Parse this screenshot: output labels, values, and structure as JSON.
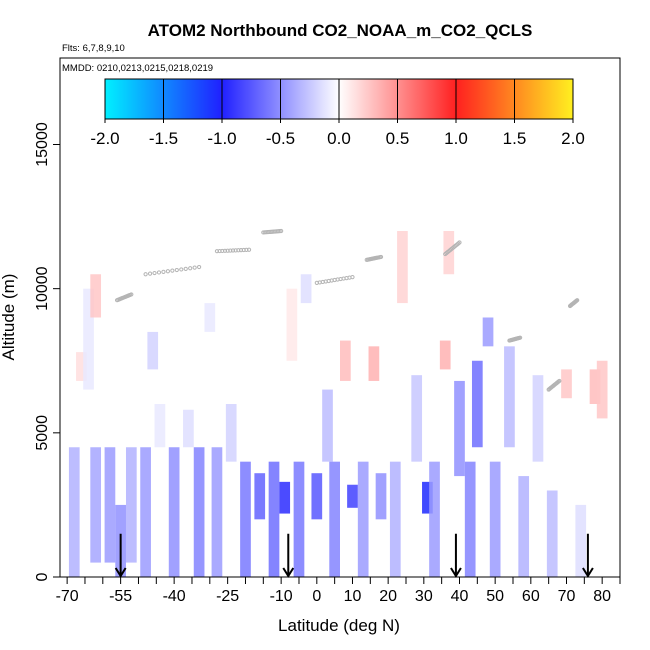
{
  "chart_data": {
    "type": "heatmap",
    "title": "ATOM2 Northbound CO2_NOAA_m_CO2_QCLS",
    "flights_label": "Flts: 6,7,8,9,10",
    "dates_label": "MMDD: 0210,0213,0215,0218,0219",
    "xlabel": "Latitude (deg N)",
    "ylabel": "Altitude (m)",
    "xlim": [
      -72,
      85
    ],
    "ylim": [
      0,
      18000
    ],
    "x_ticks": [
      -70,
      -55,
      -40,
      -25,
      -10,
      0,
      10,
      20,
      30,
      40,
      50,
      60,
      70,
      80
    ],
    "x_minor_ticks": [
      -65,
      -60,
      -50,
      -45,
      -35,
      -30,
      -20,
      -15,
      -5,
      5,
      15,
      25,
      35,
      45,
      55,
      65,
      75,
      85
    ],
    "y_ticks": [
      0,
      5000,
      10000,
      15000
    ],
    "colorbar": {
      "min": -2.0,
      "max": 2.0,
      "ticks": [
        "-2.0",
        "-1.5",
        "-1.0",
        "-0.5",
        "0.0",
        "0.5",
        "1.0",
        "1.5",
        "2.0"
      ],
      "colors": {
        "neg2": "#00f0ff",
        "neg1": "#2020ff",
        "zero": "#ffffff",
        "pos1": "#ff2020",
        "pos2": "#fff020"
      }
    },
    "grid": false,
    "profile_arrows_lat": [
      -55,
      -8,
      39,
      76
    ],
    "cells": [
      {
        "lat": -68,
        "alt": [
          0,
          4500
        ],
        "value": -0.35
      },
      {
        "lat": -66,
        "alt": [
          6800,
          7800
        ],
        "value": 0.15
      },
      {
        "lat": -64,
        "alt": [
          6500,
          10000
        ],
        "value": -0.1
      },
      {
        "lat": -62,
        "alt": [
          9000,
          10500
        ],
        "value": 0.25
      },
      {
        "lat": -62,
        "alt": [
          500,
          4500
        ],
        "value": -0.4
      },
      {
        "lat": -58,
        "alt": [
          500,
          4500
        ],
        "value": -0.45
      },
      {
        "lat": -55,
        "alt": [
          0,
          2500
        ],
        "value": -0.5
      },
      {
        "lat": -52,
        "alt": [
          500,
          4500
        ],
        "value": -0.35
      },
      {
        "lat": -48,
        "alt": [
          0,
          4500
        ],
        "value": -0.45
      },
      {
        "lat": -46,
        "alt": [
          7200,
          8500
        ],
        "value": -0.2
      },
      {
        "lat": -44,
        "alt": [
          4500,
          6000
        ],
        "value": -0.1
      },
      {
        "lat": -40,
        "alt": [
          0,
          4500
        ],
        "value": -0.5
      },
      {
        "lat": -36,
        "alt": [
          4500,
          5800
        ],
        "value": -0.15
      },
      {
        "lat": -33,
        "alt": [
          0,
          4500
        ],
        "value": -0.55
      },
      {
        "lat": -30,
        "alt": [
          8500,
          9500
        ],
        "value": -0.1
      },
      {
        "lat": -28,
        "alt": [
          0,
          4500
        ],
        "value": -0.45
      },
      {
        "lat": -24,
        "alt": [
          4000,
          6000
        ],
        "value": -0.2
      },
      {
        "lat": -20,
        "alt": [
          0,
          4000
        ],
        "value": -0.6
      },
      {
        "lat": -16,
        "alt": [
          2000,
          3600
        ],
        "value": -0.7
      },
      {
        "lat": -12,
        "alt": [
          0,
          4000
        ],
        "value": -0.65
      },
      {
        "lat": -9,
        "alt": [
          2200,
          3300
        ],
        "value": -0.95
      },
      {
        "lat": -7,
        "alt": [
          7500,
          10000
        ],
        "value": 0.1
      },
      {
        "lat": -5,
        "alt": [
          0,
          4000
        ],
        "value": -0.6
      },
      {
        "lat": -3,
        "alt": [
          9500,
          10500
        ],
        "value": -0.15
      },
      {
        "lat": 0,
        "alt": [
          2000,
          3600
        ],
        "value": -0.75
      },
      {
        "lat": 3,
        "alt": [
          4000,
          6500
        ],
        "value": -0.3
      },
      {
        "lat": 5,
        "alt": [
          0,
          4000
        ],
        "value": -0.55
      },
      {
        "lat": 8,
        "alt": [
          6800,
          8200
        ],
        "value": 0.3
      },
      {
        "lat": 10,
        "alt": [
          2400,
          3200
        ],
        "value": -0.85
      },
      {
        "lat": 13,
        "alt": [
          0,
          4000
        ],
        "value": -0.45
      },
      {
        "lat": 16,
        "alt": [
          6800,
          8000
        ],
        "value": 0.35
      },
      {
        "lat": 18,
        "alt": [
          2000,
          3600
        ],
        "value": -0.5
      },
      {
        "lat": 22,
        "alt": [
          0,
          4000
        ],
        "value": -0.35
      },
      {
        "lat": 24,
        "alt": [
          9500,
          12000
        ],
        "value": 0.2
      },
      {
        "lat": 28,
        "alt": [
          4000,
          7000
        ],
        "value": -0.25
      },
      {
        "lat": 31,
        "alt": [
          2200,
          3300
        ],
        "value": -1.05
      },
      {
        "lat": 33,
        "alt": [
          0,
          4000
        ],
        "value": -0.45
      },
      {
        "lat": 36,
        "alt": [
          7200,
          8200
        ],
        "value": 0.35
      },
      {
        "lat": 37,
        "alt": [
          10500,
          12000
        ],
        "value": 0.2
      },
      {
        "lat": 40,
        "alt": [
          3500,
          6800
        ],
        "value": -0.5
      },
      {
        "lat": 43,
        "alt": [
          0,
          4000
        ],
        "value": -0.55
      },
      {
        "lat": 45,
        "alt": [
          4500,
          7500
        ],
        "value": -0.65
      },
      {
        "lat": 48,
        "alt": [
          8000,
          9000
        ],
        "value": -0.45
      },
      {
        "lat": 50,
        "alt": [
          0,
          4000
        ],
        "value": -0.45
      },
      {
        "lat": 54,
        "alt": [
          4500,
          8000
        ],
        "value": -0.3
      },
      {
        "lat": 58,
        "alt": [
          0,
          3500
        ],
        "value": -0.35
      },
      {
        "lat": 62,
        "alt": [
          4000,
          7000
        ],
        "value": -0.2
      },
      {
        "lat": 66,
        "alt": [
          0,
          3000
        ],
        "value": -0.3
      },
      {
        "lat": 70,
        "alt": [
          6200,
          7200
        ],
        "value": 0.25
      },
      {
        "lat": 74,
        "alt": [
          0,
          2500
        ],
        "value": -0.15
      },
      {
        "lat": 78,
        "alt": [
          6000,
          7200
        ],
        "value": 0.3
      },
      {
        "lat": 80,
        "alt": [
          5500,
          7500
        ],
        "value": 0.25
      }
    ],
    "flight_tracks": [
      {
        "lat": [
          -56,
          -52
        ],
        "alt": [
          9600,
          9800
        ]
      },
      {
        "lat": [
          -48,
          -33
        ],
        "alt": [
          10500,
          10750
        ]
      },
      {
        "lat": [
          -28,
          -19
        ],
        "alt": [
          11300,
          11350
        ]
      },
      {
        "lat": [
          -15,
          -10
        ],
        "alt": [
          11950,
          12000
        ]
      },
      {
        "lat": [
          0,
          10
        ],
        "alt": [
          10200,
          10400
        ]
      },
      {
        "lat": [
          14,
          18
        ],
        "alt": [
          11000,
          11100
        ]
      },
      {
        "lat": [
          36,
          40
        ],
        "alt": [
          11200,
          11600
        ]
      },
      {
        "lat": [
          54,
          57
        ],
        "alt": [
          8200,
          8300
        ]
      },
      {
        "lat": [
          65,
          68
        ],
        "alt": [
          6500,
          6800
        ]
      },
      {
        "lat": [
          71,
          73
        ],
        "alt": [
          9400,
          9600
        ]
      }
    ],
    "track_point_color": "#b4b4b4"
  }
}
